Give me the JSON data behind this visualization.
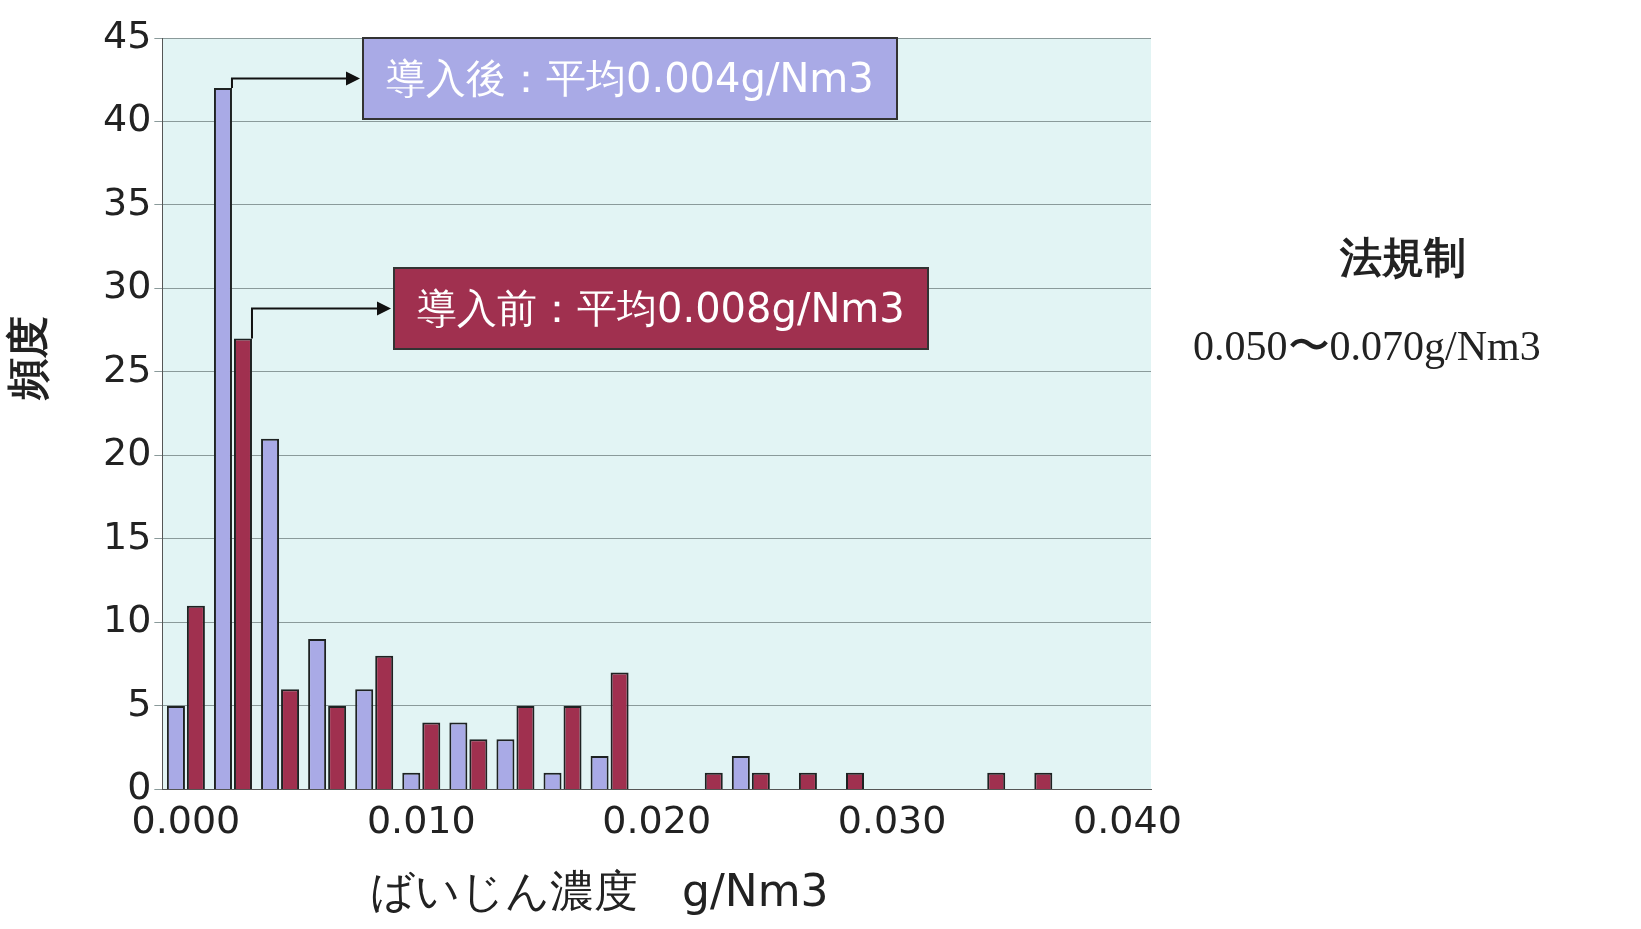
{
  "chart_data": {
    "type": "bar",
    "xlabel": "ばいじん濃度　g/Nm3",
    "ylabel": "頻度",
    "categories": [
      "0.000",
      null,
      null,
      null,
      null,
      "0.010",
      null,
      null,
      null,
      null,
      "0.020",
      null,
      null,
      null,
      null,
      "0.030",
      null,
      null,
      null,
      null,
      "0.040"
    ],
    "series": [
      {
        "name": "導入後：平均0.004g/Nm3",
        "color": "#a9aae6",
        "values": [
          5,
          42,
          21,
          9,
          6,
          1,
          4,
          3,
          1,
          2,
          0,
          0,
          2,
          0,
          0,
          0,
          0,
          0,
          0,
          0,
          0
        ]
      },
      {
        "name": "導入前：平均0.008g/Nm3",
        "color": "#a0304f",
        "values": [
          11,
          27,
          6,
          5,
          8,
          4,
          3,
          5,
          5,
          7,
          0,
          1,
          1,
          1,
          1,
          0,
          0,
          1,
          1,
          0,
          0
        ]
      }
    ],
    "ylim": [
      0,
      45
    ],
    "yticks": [
      0,
      5,
      10,
      15,
      20,
      25,
      30,
      35,
      40,
      45
    ],
    "grid": "y",
    "legend": false,
    "annotations": [
      "法規制",
      "0.050〜0.070g/Nm3"
    ]
  }
}
